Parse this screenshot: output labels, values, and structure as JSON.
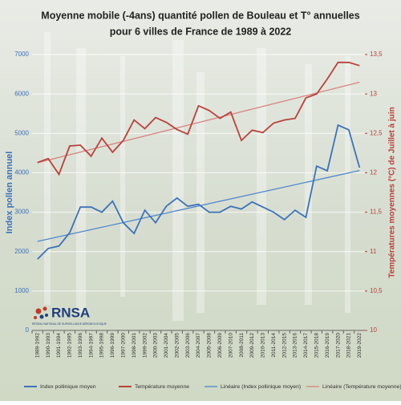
{
  "chart_data": {
    "type": "line",
    "title": [
      "Moyenne mobile (-4ans) quantité pollen de Bouleau et T° annuelles",
      "pour 6 villes de France de 1989 à 2022"
    ],
    "y_label": "Index pollen annuel",
    "y2_label": "Températures moyennes (°C) de Juillet à juin",
    "categories": [
      "1989-1992",
      "1990-1993",
      "1991-1994",
      "1992-1995",
      "1993-1996",
      "1994-1997",
      "1995-1998",
      "1996-1999",
      "1997-2000",
      "1998-2001",
      "1999-2002",
      "2000-2003",
      "2001-2004",
      "2002-2005",
      "2003-2006",
      "2004-2007",
      "2005-2008",
      "2006-2009",
      "2007-2010",
      "2008-2011",
      "2009-2012",
      "2010-2013",
      "2011-2014",
      "2012-2015",
      "2013-2016",
      "2014-2017",
      "2015-2018",
      "2016-2019",
      "2017-2020",
      "2018-2021",
      "2019-2022"
    ],
    "series": [
      {
        "name": "Index pollinique moyen",
        "color": "#3d72b8",
        "trend_name": "Linéaire (Index pollinique moyen)",
        "trend_color": "#4f86cc",
        "axis": "y",
        "values": [
          1810,
          2080,
          2140,
          2480,
          3130,
          3130,
          3000,
          3280,
          2730,
          2460,
          3050,
          2730,
          3150,
          3360,
          3150,
          3200,
          3000,
          3000,
          3150,
          3080,
          3260,
          3130,
          3000,
          2810,
          3050,
          2870,
          4170,
          4050,
          5210,
          5090,
          4130
        ]
      },
      {
        "name": "Température moyenne",
        "color": "#b8413b",
        "trend_name": "Linéaire (Température moyenne)",
        "trend_color": "#d9837f",
        "axis": "y2",
        "values": [
          12.13,
          12.18,
          11.98,
          12.34,
          12.35,
          12.21,
          12.44,
          12.26,
          12.41,
          12.67,
          12.56,
          12.7,
          12.64,
          12.55,
          12.49,
          12.85,
          12.79,
          12.69,
          12.77,
          12.41,
          12.54,
          12.51,
          12.63,
          12.67,
          12.69,
          12.95,
          13.0,
          13.19,
          13.4,
          13.4,
          13.36
        ]
      }
    ],
    "ylim": [
      0,
      7000
    ],
    "yticks": [
      0,
      1000,
      2000,
      3000,
      4000,
      5000,
      6000,
      7000
    ],
    "y2lim": [
      10,
      13.5
    ],
    "y2ticks": [
      10,
      {
        "value": 10.5,
        "label": "10,5"
      },
      11,
      {
        "value": 11.5,
        "label": "11,5"
      },
      12,
      {
        "value": 12.5,
        "label": "12,5"
      },
      13,
      {
        "value": 13.5,
        "label": "13,5"
      }
    ],
    "grid": true,
    "legend": "bottom",
    "logo": {
      "name": "RNSA",
      "subtitle": "RÉSEAU NATIONAL DE SURVEILLANCE AÉROBIOLOGIQUE"
    }
  }
}
